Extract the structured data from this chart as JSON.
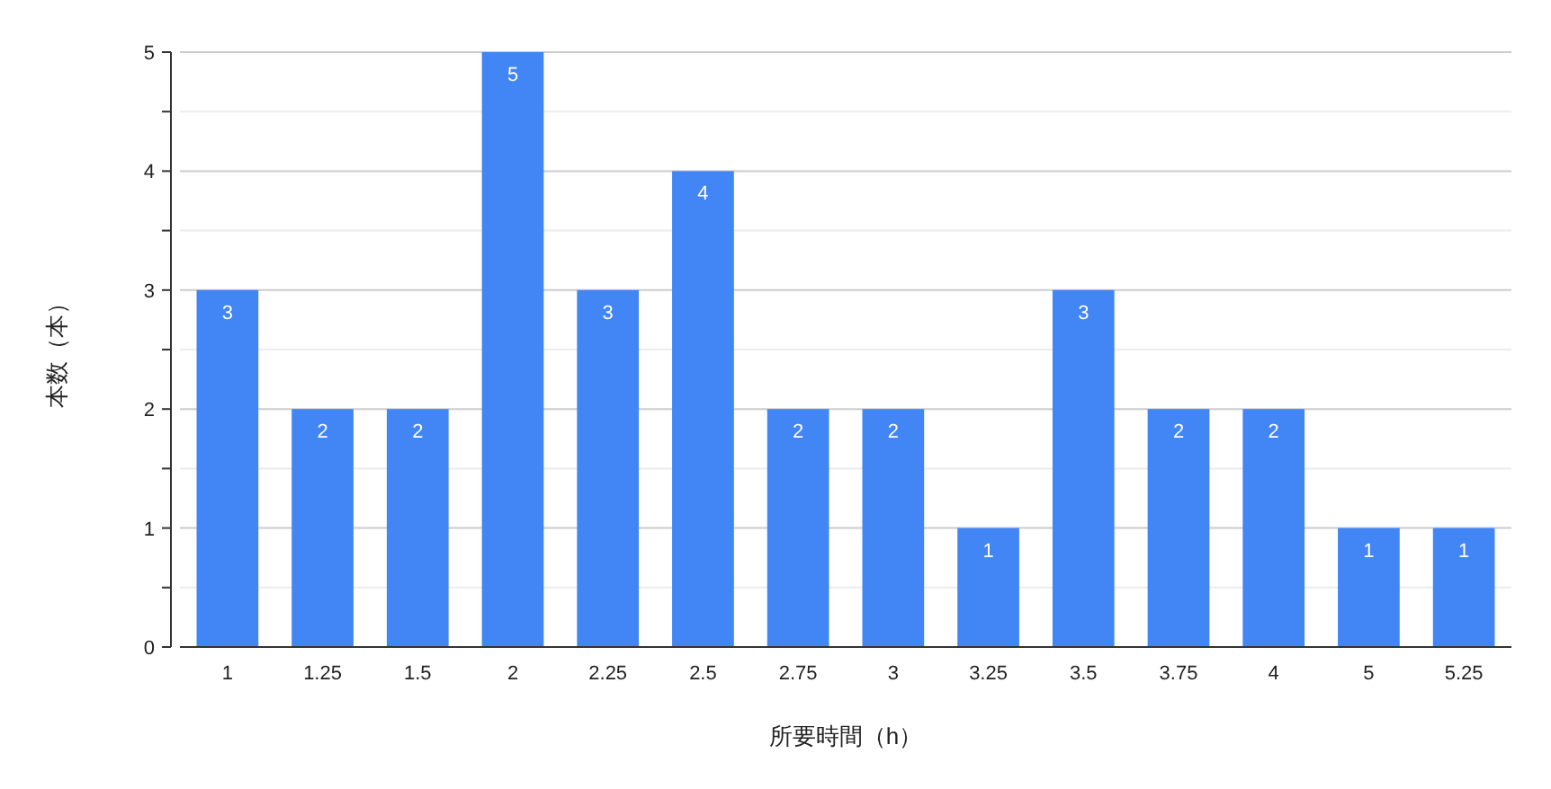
{
  "chart_data": {
    "type": "bar",
    "xlabel": "所要時間（h）",
    "ylabel": "本数（本）",
    "categories": [
      "1",
      "1.25",
      "1.5",
      "2",
      "2.25",
      "2.5",
      "2.75",
      "3",
      "3.25",
      "3.5",
      "3.75",
      "4",
      "5",
      "5.25"
    ],
    "values": [
      3,
      2,
      2,
      5,
      3,
      4,
      2,
      2,
      1,
      3,
      2,
      2,
      1,
      1
    ],
    "color": "#4285f4",
    "data_labels": true,
    "grid": "y",
    "ylim": [
      0,
      5
    ],
    "yticks": [
      0,
      {
        "value": 0.5,
        "label": null
      },
      1,
      {
        "value": 1.5,
        "label": null
      },
      2,
      {
        "value": 2.5,
        "label": null
      },
      3,
      {
        "value": 3.5,
        "label": null
      },
      4,
      {
        "value": 4.5,
        "label": null
      },
      5
    ]
  }
}
